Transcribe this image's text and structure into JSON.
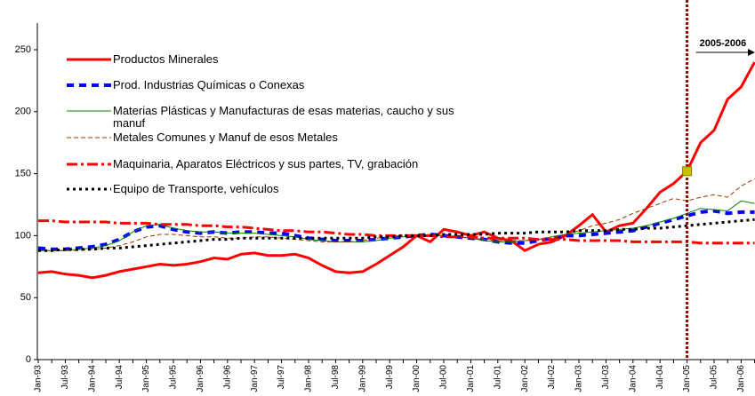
{
  "chart_data": {
    "type": "line",
    "categories": [
      "Jan-93",
      null,
      "Jul-93",
      null,
      "Jan-94",
      null,
      "Jul-94",
      null,
      "Jan-95",
      null,
      "Jul-95",
      null,
      "Jan-96",
      null,
      "Jul-96",
      null,
      "Jan-97",
      null,
      "Jul-97",
      null,
      "Jan-98",
      null,
      "Jul-98",
      null,
      "Jan-99",
      null,
      "Jul-99",
      null,
      "Jan-00",
      null,
      "Jul-00",
      null,
      "Jan-01",
      null,
      "Jul-01",
      null,
      "Jan-02",
      null,
      "Jul-02",
      null,
      "Jan-03",
      null,
      "Jul-03",
      null,
      "Jan-04",
      null,
      "Jul-04",
      null,
      "Jan-05",
      null,
      "Jul-05",
      null,
      "Jan-06",
      null
    ],
    "series": [
      {
        "name": "Productos Minerales",
        "color": "#ff0000",
        "values": [
          70,
          71,
          69,
          68,
          66,
          68,
          71,
          73,
          75,
          77,
          76,
          77,
          79,
          82,
          81,
          85,
          86,
          84,
          84,
          85,
          82,
          76,
          71,
          70,
          71,
          77,
          84,
          91,
          100,
          95,
          105,
          103,
          100,
          103,
          98,
          96,
          88,
          93,
          95,
          100,
          108,
          117,
          103,
          108,
          110,
          122,
          135,
          142,
          152,
          175,
          185,
          210,
          220,
          240
        ]
      },
      {
        "name": "Prod. Industrias Químicas o Conexas",
        "color": "#0000ff",
        "values": [
          90,
          89,
          89,
          90,
          91,
          93,
          97,
          103,
          107,
          108,
          105,
          103,
          102,
          103,
          102,
          103,
          103,
          102,
          102,
          100,
          98,
          97,
          96,
          96,
          96,
          97,
          98,
          99,
          100,
          101,
          100,
          99,
          98,
          97,
          95,
          94,
          94,
          96,
          98,
          100,
          100,
          101,
          102,
          103,
          104,
          107,
          110,
          113,
          116,
          119,
          120,
          118,
          119,
          119
        ]
      },
      {
        "name": "Materias Plásticas y Manufacturas de esas materias, caucho y sus manuf",
        "color": "#008000",
        "values": [
          88,
          88,
          88,
          89,
          90,
          92,
          96,
          103,
          108,
          109,
          106,
          104,
          103,
          103,
          102,
          102,
          102,
          101,
          100,
          99,
          97,
          96,
          95,
          95,
          95,
          96,
          98,
          99,
          100,
          100,
          100,
          99,
          98,
          96,
          95,
          95,
          96,
          97,
          99,
          101,
          102,
          103,
          104,
          105,
          106,
          108,
          111,
          114,
          118,
          122,
          121,
          120,
          128,
          126
        ]
      },
      {
        "name": "Metales Comunes y Manuf de esos Metales",
        "color": "#993300",
        "values": [
          88,
          88,
          88,
          88,
          89,
          90,
          92,
          95,
          99,
          101,
          101,
          100,
          99,
          99,
          98,
          98,
          99,
          99,
          98,
          97,
          96,
          95,
          95,
          95,
          96,
          98,
          99,
          100,
          100,
          101,
          100,
          99,
          98,
          97,
          96,
          96,
          96,
          97,
          98,
          101,
          104,
          108,
          110,
          113,
          118,
          122,
          126,
          130,
          128,
          131,
          133,
          131,
          140,
          146
        ]
      },
      {
        "name": "Maquinaria, Aparatos Eléctricos y sus partes, TV, grabación",
        "color": "#ff0000",
        "values": [
          112,
          112,
          111,
          111,
          111,
          111,
          110,
          110,
          110,
          109,
          109,
          109,
          108,
          108,
          107,
          107,
          106,
          105,
          104,
          104,
          103,
          103,
          102,
          101,
          101,
          100,
          100,
          100,
          100,
          100,
          99,
          99,
          99,
          98,
          98,
          98,
          98,
          97,
          97,
          97,
          96,
          96,
          96,
          96,
          95,
          95,
          95,
          95,
          95,
          94,
          94,
          94,
          94,
          94
        ]
      },
      {
        "name": "Equipo de Transporte, vehículos",
        "color": "#000000",
        "values": [
          88,
          88,
          89,
          89,
          89,
          90,
          90,
          91,
          92,
          93,
          94,
          95,
          96,
          97,
          97,
          98,
          98,
          98,
          98,
          98,
          98,
          98,
          98,
          98,
          98,
          99,
          99,
          100,
          100,
          100,
          101,
          101,
          101,
          101,
          102,
          102,
          102,
          103,
          103,
          103,
          104,
          104,
          104,
          105,
          105,
          106,
          106,
          107,
          108,
          109,
          110,
          111,
          112,
          113
        ]
      }
    ],
    "ylim": [
      0,
      250
    ],
    "yticks": [
      0,
      50,
      100,
      150,
      200,
      250
    ],
    "annotation": {
      "text": "2005-2006",
      "x": "Jan-05"
    }
  }
}
